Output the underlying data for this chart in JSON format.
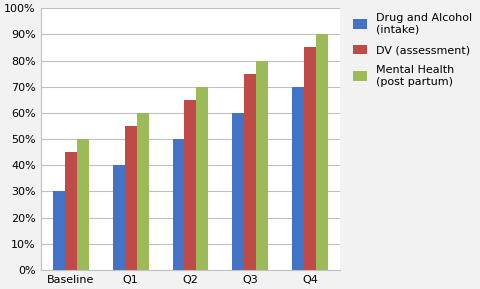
{
  "categories": [
    "Baseline",
    "Q1",
    "Q2",
    "Q3",
    "Q4"
  ],
  "series": [
    {
      "name": "Drug and Alcohol\n(intake)",
      "values": [
        0.3,
        0.4,
        0.5,
        0.6,
        0.7
      ],
      "color": "#4472C4"
    },
    {
      "name": "DV (assessment)",
      "values": [
        0.45,
        0.55,
        0.65,
        0.75,
        0.85
      ],
      "color": "#BE4B48"
    },
    {
      "name": "Mental Health\n(post partum)",
      "values": [
        0.5,
        0.6,
        0.7,
        0.8,
        0.9
      ],
      "color": "#9BBB59"
    }
  ],
  "ylim": [
    0,
    1.0
  ],
  "yticks": [
    0.0,
    0.1,
    0.2,
    0.3,
    0.4,
    0.5,
    0.6,
    0.7,
    0.8,
    0.9,
    1.0
  ],
  "figure_bg": "#F2F2F2",
  "plot_area_color": "#FFFFFF",
  "grid_color": "#C0C0C0",
  "bar_width": 0.2,
  "tick_fontsize": 8.0,
  "legend_fontsize": 8.0
}
